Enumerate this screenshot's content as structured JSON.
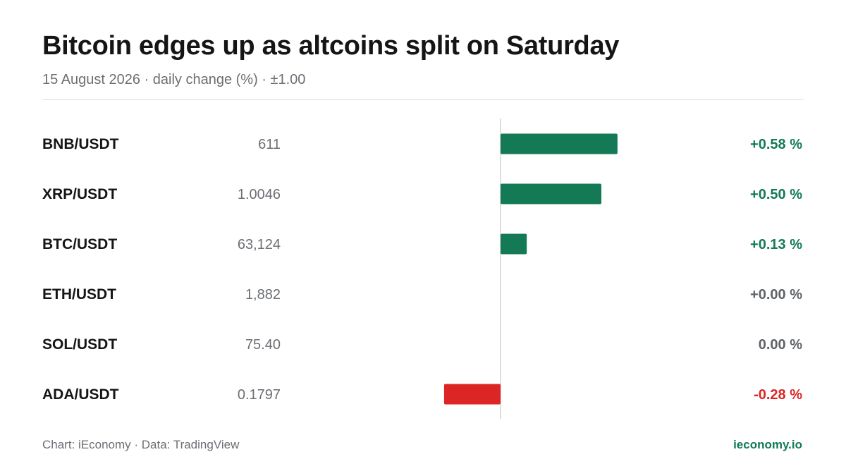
{
  "header": {
    "title": "Bitcoin edges up as altcoins split on Saturday",
    "subtitle": "15 August 2026 · daily change (%) · ±1.00"
  },
  "footer": {
    "source": "Chart: iEconomy · Data: TradingView",
    "site": "ieconomy.io"
  },
  "colors": {
    "positive": "#137a55",
    "negative": "#dc2626",
    "neutral": "#5f6368"
  },
  "chart_data": {
    "type": "bar",
    "orientation": "horizontal",
    "categories": [
      "BNB/USDT",
      "XRP/USDT",
      "BTC/USDT",
      "ETH/USDT",
      "SOL/USDT",
      "ADA/USDT"
    ],
    "prices": [
      "611",
      "1.0046",
      "63,124",
      "1,882",
      "75.40",
      "0.1797"
    ],
    "values": [
      0.58,
      0.5,
      0.13,
      0.0,
      0.0,
      -0.28
    ],
    "value_labels": [
      "+0.58 %",
      "+0.50 %",
      "+0.13 %",
      "+0.00 %",
      "0.00 %",
      "-0.28 %"
    ],
    "xlim": [
      -1,
      1
    ]
  }
}
